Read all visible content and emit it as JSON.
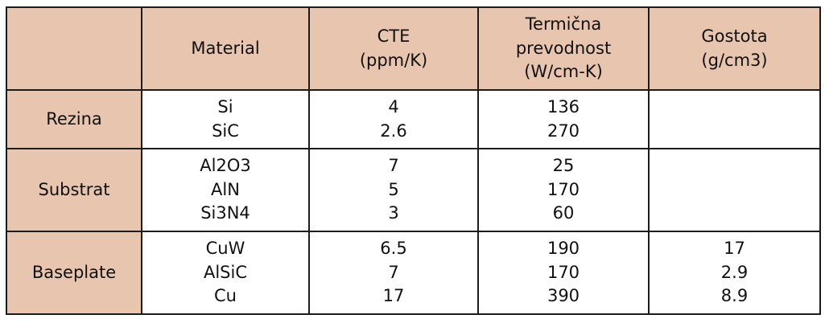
{
  "table": {
    "headers": {
      "corner": "",
      "material": "Material",
      "cte": "CTE\n(ppm/K)",
      "thermal_conductivity": "Termična\nprevodnost\n(W/cm-K)",
      "density": "Gostota\n(g/cm3)"
    },
    "rows": [
      {
        "label": "Rezina",
        "material": [
          "Si",
          "SiC"
        ],
        "cte": [
          "4",
          "2.6"
        ],
        "thermal_conductivity": [
          "136",
          "270"
        ],
        "density": []
      },
      {
        "label": "Substrat",
        "material": [
          "Al2O3",
          "AlN",
          "Si3N4"
        ],
        "cte": [
          "7",
          "5",
          "3"
        ],
        "thermal_conductivity": [
          "25",
          "170",
          "60"
        ],
        "density": []
      },
      {
        "label": "Baseplate",
        "material": [
          "CuW",
          "AlSiC",
          "Cu"
        ],
        "cte": [
          "6.5",
          "7",
          "17"
        ],
        "thermal_conductivity": [
          "190",
          "170",
          "390"
        ],
        "density": [
          "17",
          "2.9",
          "8.9"
        ]
      }
    ],
    "colors": {
      "header_background": "#e8c5ae",
      "body_background": "#ffffff",
      "border": "#1c1c1c",
      "text": "#111111"
    }
  }
}
